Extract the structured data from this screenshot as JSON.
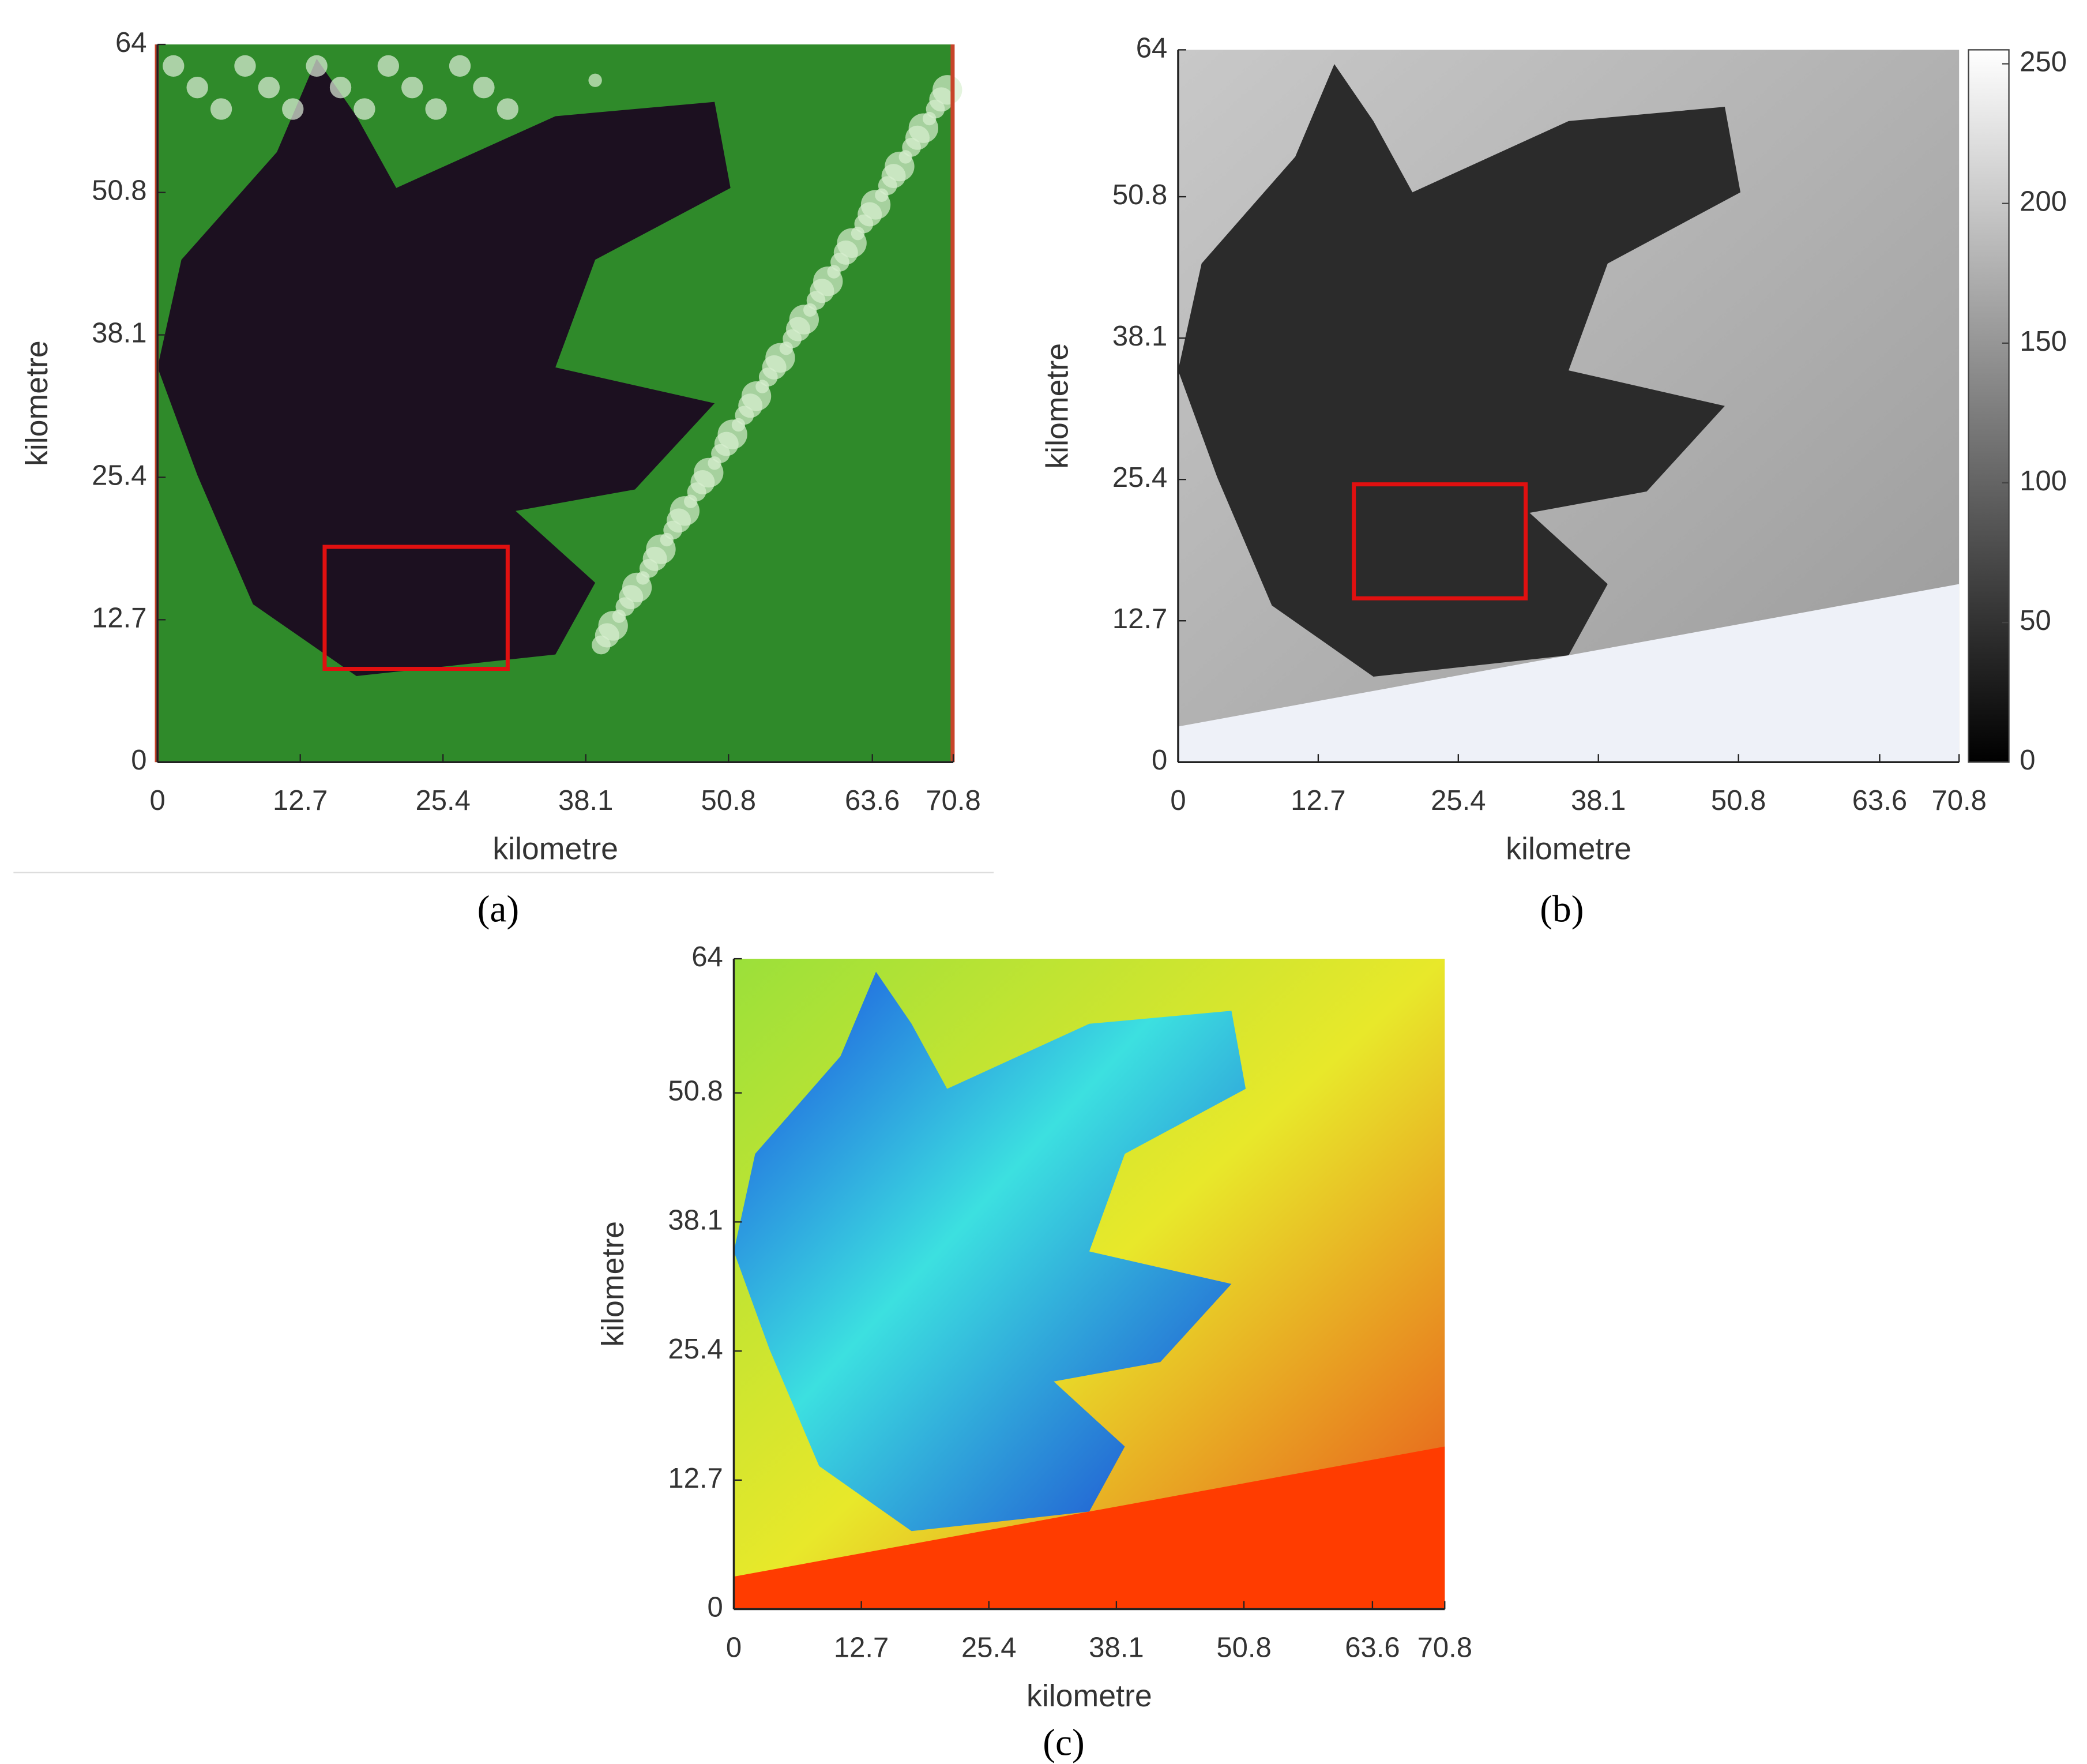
{
  "chart_data": [
    {
      "type": "image",
      "palette": "rgb",
      "caption": "(a)",
      "xlabel": "kilometre",
      "ylabel": "kilometre",
      "xlim": [
        0,
        70.8
      ],
      "ylim": [
        0,
        64
      ],
      "xticks": [
        0,
        12.7,
        25.4,
        38.1,
        50.8,
        63.6,
        70.8
      ],
      "yticks": [
        0,
        12.7,
        25.4,
        38.1,
        50.8,
        64
      ]
    },
    {
      "type": "image",
      "palette": "gray",
      "caption": "(b)",
      "xlabel": "kilometre",
      "ylabel": "kilometre",
      "xlim": [
        0,
        70.8
      ],
      "ylim": [
        0,
        64
      ],
      "xticks": [
        0,
        12.7,
        25.4,
        38.1,
        50.8,
        63.6,
        70.8
      ],
      "yticks": [
        0,
        12.7,
        25.4,
        38.1,
        50.8,
        64
      ],
      "colorbar": {
        "lim": [
          0,
          255
        ],
        "ticks": [
          0,
          50,
          100,
          150,
          200,
          250
        ]
      }
    },
    {
      "type": "image",
      "palette": "jet",
      "caption": "(c)",
      "xlabel": "kilometre",
      "ylabel": "kilometre",
      "xlim": [
        0,
        70.8
      ],
      "ylim": [
        0,
        64
      ],
      "xticks": [
        0,
        12.7,
        25.4,
        38.1,
        50.8,
        63.6,
        70.8
      ],
      "yticks": [
        0,
        12.7,
        25.4,
        38.1,
        50.8,
        64
      ]
    }
  ]
}
